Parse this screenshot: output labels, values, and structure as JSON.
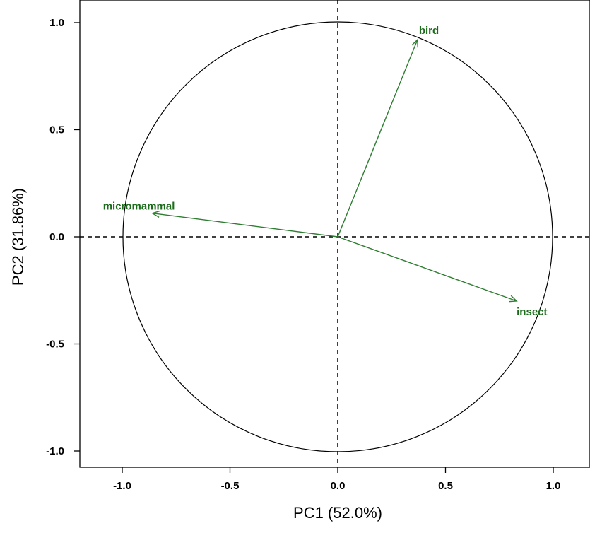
{
  "chart_data": {
    "type": "scatter",
    "subtype": "pca-correlation-circle",
    "xlabel": "PC1 (52.0%)",
    "ylabel": "PC2 (31.86%)",
    "xlim": [
      -1.2,
      1.2
    ],
    "ylim": [
      -1.1,
      1.1
    ],
    "xticks": [
      "-1.0",
      "-0.5",
      "0.0",
      "0.5",
      "1.0"
    ],
    "yticks": [
      "-1.0",
      "-0.5",
      "0.0",
      "0.5",
      "1.0"
    ],
    "grid": false,
    "reference_lines": {
      "x": 0,
      "y": 0,
      "style": "dashed"
    },
    "unit_circle": true,
    "series_color": "#2e7d32",
    "label_color": "#1a6b1a",
    "vectors": [
      {
        "name": "bird",
        "x": 0.37,
        "y": 0.92
      },
      {
        "name": "micromammal",
        "x": -0.86,
        "y": 0.11
      },
      {
        "name": "insect",
        "x": 0.83,
        "y": -0.3
      }
    ]
  }
}
